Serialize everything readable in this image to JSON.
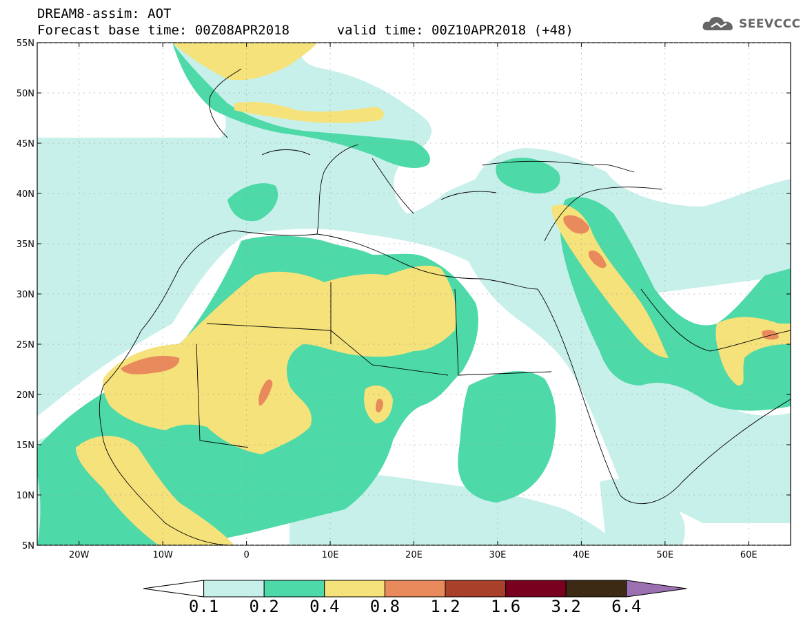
{
  "header": {
    "title": "DREAM8-assim: AOT",
    "base_time_label": "Forecast base time: 00Z08APR2018",
    "valid_time_label": "valid time: 00Z10APR2018 (+48)"
  },
  "logo": {
    "text": "SEEVCCC",
    "icon": "cloud-logo-icon"
  },
  "map": {
    "lon_range": [
      -25,
      65
    ],
    "lat_range": [
      5,
      55
    ],
    "lon_ticks": [
      {
        "value": -20,
        "label": "20W"
      },
      {
        "value": -10,
        "label": "10W"
      },
      {
        "value": 0,
        "label": "0"
      },
      {
        "value": 10,
        "label": "10E"
      },
      {
        "value": 20,
        "label": "20E"
      },
      {
        "value": 30,
        "label": "30E"
      },
      {
        "value": 40,
        "label": "40E"
      },
      {
        "value": 50,
        "label": "50E"
      },
      {
        "value": 60,
        "label": "60E"
      }
    ],
    "lat_ticks": [
      {
        "value": 5,
        "label": "5N"
      },
      {
        "value": 10,
        "label": "10N"
      },
      {
        "value": 15,
        "label": "15N"
      },
      {
        "value": 20,
        "label": "20N"
      },
      {
        "value": 25,
        "label": "25N"
      },
      {
        "value": 30,
        "label": "30N"
      },
      {
        "value": 35,
        "label": "35N"
      },
      {
        "value": 40,
        "label": "40N"
      },
      {
        "value": 45,
        "label": "45N"
      },
      {
        "value": 50,
        "label": "50N"
      },
      {
        "value": 55,
        "label": "55N"
      }
    ],
    "grid": "dotted"
  },
  "colorbar": {
    "levels": [
      "0.1",
      "0.2",
      "0.4",
      "0.8",
      "1.2",
      "1.6",
      "3.2",
      "6.4"
    ],
    "colors": [
      "#ffffff",
      "#c8f0ea",
      "#4dd9a8",
      "#f5e27a",
      "#e88a5c",
      "#a8402a",
      "#7a0020",
      "#3d2a14",
      "#9b6fb0"
    ]
  },
  "fields": {
    "light": "#c8f0ea",
    "green": "#4dd9a8",
    "yellow": "#f5e27a",
    "orange": "#e88a5c",
    "land_border": "#000000"
  }
}
